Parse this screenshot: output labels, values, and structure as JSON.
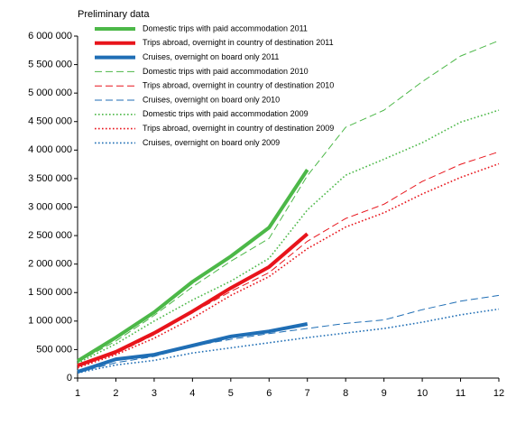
{
  "chart_data": {
    "type": "line",
    "subtitle": "Preliminary data",
    "x": [
      1,
      2,
      3,
      4,
      5,
      6,
      7,
      8,
      9,
      10,
      11,
      12
    ],
    "xlim": [
      1,
      12
    ],
    "xticks": [
      1,
      2,
      3,
      4,
      5,
      6,
      7,
      8,
      9,
      10,
      11,
      12
    ],
    "ylim": [
      0,
      6000000
    ],
    "yticks": [
      0,
      {
        "value": 500000,
        "label": "500 000"
      },
      {
        "value": 1000000,
        "label": "1 000 000"
      },
      {
        "value": 1500000,
        "label": "1 500 000"
      },
      {
        "value": 2000000,
        "label": "2 000 000"
      },
      {
        "value": 2500000,
        "label": "2 500 000"
      },
      {
        "value": 3000000,
        "label": "3 000 000"
      },
      {
        "value": 3500000,
        "label": "3 500 000"
      },
      {
        "value": 4000000,
        "label": "4 000 000"
      },
      {
        "value": 4500000,
        "label": "4 500 000"
      },
      {
        "value": 5000000,
        "label": "5 000 000"
      },
      {
        "value": 5500000,
        "label": "5 500 000"
      },
      {
        "value": 6000000,
        "label": "6 000 000"
      }
    ],
    "grid": false,
    "legend": "upper left",
    "series": [
      {
        "name": "Domestic trips with paid accommodation 2011",
        "color": "#4cb848",
        "linestyle": "solid",
        "linewidth": 4,
        "values": [
          300000,
          712000,
          1155000,
          1690000,
          2135000,
          2640000,
          3655000,
          null,
          null,
          null,
          null,
          null
        ]
      },
      {
        "name": "Trips abroad,  overnight in country of destination 2011",
        "color": "#e8141b",
        "linestyle": "solid",
        "linewidth": 4,
        "values": [
          220000,
          460000,
          790000,
          1170000,
          1580000,
          1950000,
          2530000,
          null,
          null,
          null,
          null,
          null
        ]
      },
      {
        "name": "Cruises, overnight on board only 2011",
        "color": "#1f6eb5",
        "linestyle": "solid",
        "linewidth": 4,
        "values": [
          110000,
          330000,
          410000,
          570000,
          730000,
          820000,
          950000,
          null,
          null,
          null,
          null,
          null
        ]
      },
      {
        "name": "Domestic trips with paid accommodation 2010",
        "color": "#4cb848",
        "linestyle": "dashed",
        "linewidth": 1,
        "values": [
          280000,
          650000,
          1100000,
          1600000,
          2050000,
          2450000,
          3550000,
          4400000,
          4700000,
          5200000,
          5650000,
          5920000
        ]
      },
      {
        "name": "Trips abroad, overnight in country of destination 2010",
        "color": "#e8141b",
        "linestyle": "dashed",
        "linewidth": 1,
        "values": [
          200000,
          430000,
          760000,
          1150000,
          1520000,
          1850000,
          2400000,
          2800000,
          3050000,
          3450000,
          3750000,
          3970000
        ]
      },
      {
        "name": "Cruises, overnight on board only 2010",
        "color": "#1f6eb5",
        "linestyle": "dashed",
        "linewidth": 1,
        "values": [
          100000,
          270000,
          380000,
          560000,
          680000,
          780000,
          870000,
          960000,
          1020000,
          1200000,
          1350000,
          1450000
        ]
      },
      {
        "name": "Domestic trips with paid accommodation 2009",
        "color": "#4cb848",
        "linestyle": "dotted",
        "linewidth": 1.6,
        "values": [
          260000,
          600000,
          1000000,
          1370000,
          1700000,
          2100000,
          2950000,
          3560000,
          3840000,
          4130000,
          4490000,
          4700000
        ]
      },
      {
        "name": "Trips abroad, overnight in country of destination 2009",
        "color": "#e8141b",
        "linestyle": "dotted",
        "linewidth": 1.6,
        "values": [
          180000,
          410000,
          700000,
          1050000,
          1450000,
          1780000,
          2270000,
          2650000,
          2900000,
          3230000,
          3520000,
          3760000
        ]
      },
      {
        "name": "Cruises, overnight on board only 2009",
        "color": "#1f6eb5",
        "linestyle": "dotted",
        "linewidth": 1.6,
        "values": [
          90000,
          230000,
          310000,
          440000,
          530000,
          620000,
          710000,
          790000,
          870000,
          980000,
          1110000,
          1210000
        ]
      }
    ]
  }
}
